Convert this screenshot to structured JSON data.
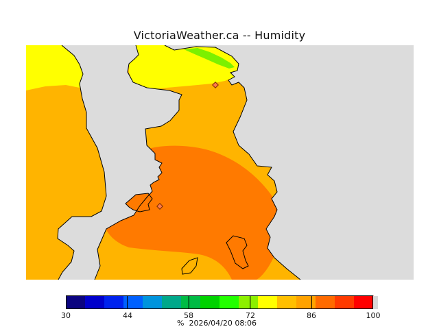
{
  "title": "VictoriaWeather.ca -- Humidity",
  "legend": {
    "ticks": [
      "30",
      "44",
      "58",
      "72",
      "86",
      "100"
    ],
    "range": [
      30,
      100
    ],
    "colors": [
      "#0b0480",
      "#0000cc",
      "#0022ee",
      "#0060ff",
      "#0094dd",
      "#00a88a",
      "#00bb44",
      "#00d200",
      "#22ff00",
      "#8cf000",
      "#ffff00",
      "#ffbf00",
      "#ffa200",
      "#ff6a00",
      "#ff3a00",
      "#ff0000"
    ],
    "unit": "%",
    "timestamp": "2026/04/20 08:06"
  },
  "map": {
    "land_color": "#dcdcdc",
    "station_color": "#ff7a4a",
    "zones": [
      {
        "name": "yellow",
        "color": "#ffff00"
      },
      {
        "name": "light-orange",
        "color": "#ffb400"
      },
      {
        "name": "dark-orange",
        "color": "#ff7a00"
      },
      {
        "name": "green",
        "color": "#7cf000"
      }
    ]
  }
}
